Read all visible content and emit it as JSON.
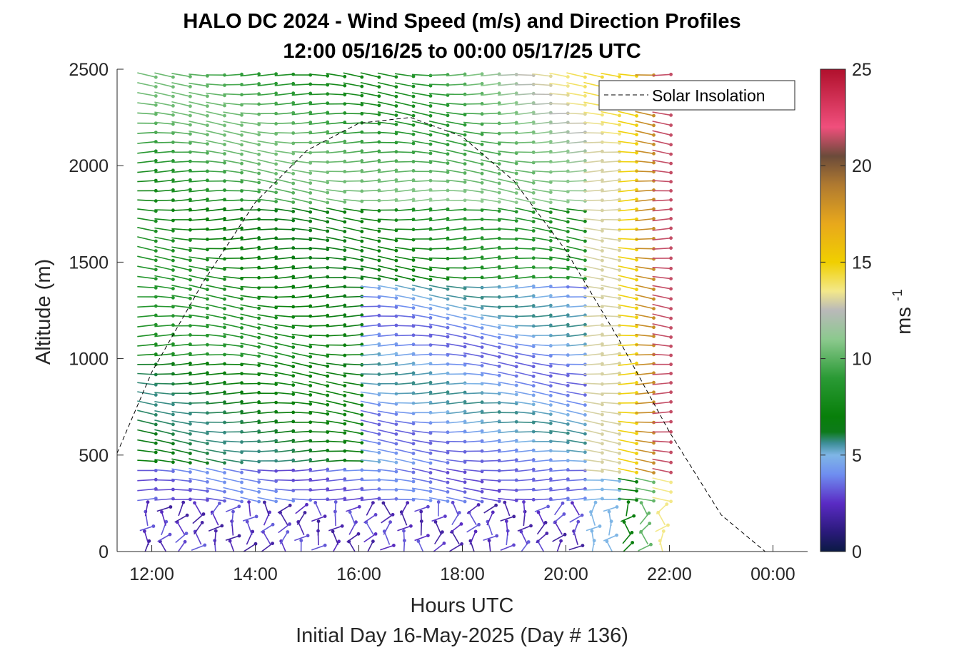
{
  "chart_data": {
    "type": "quiver",
    "title": "HALO DC 2024 - Wind Speed (m/s) and Direction Profiles",
    "subtitle": "12:00 05/16/25 to 00:00 05/17/25  UTC",
    "xlabel": "Hours UTC",
    "ylabel": "Altitude (m)",
    "caption": "Initial Day 16-May-2025 (Day # 136)",
    "x_ticks": [
      "12:00",
      "14:00",
      "16:00",
      "18:00",
      "20:00",
      "22:00",
      "00:00"
    ],
    "x_tick_hours": [
      12,
      14,
      16,
      18,
      20,
      22,
      24
    ],
    "xlim_hours": [
      11.33,
      24.67
    ],
    "y_ticks": [
      "0",
      "500",
      "1000",
      "1500",
      "2000",
      "2500"
    ],
    "y_tick_values": [
      0,
      500,
      1000,
      1500,
      2000,
      2500
    ],
    "ylim": [
      0,
      2500
    ],
    "colorbar": {
      "label": "ms",
      "label_exponent": "-1",
      "ticks": [
        "0",
        "5",
        "10",
        "15",
        "20",
        "25"
      ],
      "tick_values": [
        0,
        5,
        10,
        15,
        20,
        25
      ],
      "range": [
        0,
        25
      ]
    },
    "legend": {
      "entries": [
        "Solar Insolation"
      ],
      "placement": "top-right"
    },
    "solar_insolation": {
      "style": "dashed",
      "color": "#000000",
      "hours": [
        11.33,
        12,
        13,
        14,
        15,
        16,
        17,
        18,
        19,
        20,
        21,
        22,
        23,
        23.85,
        24.67
      ],
      "altitude_equivalent_m": [
        510,
        930,
        1400,
        1810,
        2080,
        2220,
        2250,
        2150,
        1920,
        1560,
        1110,
        620,
        190,
        0,
        0
      ]
    },
    "wind_profiles": {
      "profile_start_hour": 11.9,
      "profile_end_hour": 21.85,
      "profile_count": 31,
      "lowest_level_m": 20,
      "level_spacing_m": 50,
      "level_count": 50,
      "layers": [
        {
          "altitude_m": [
            0,
            250
          ],
          "speed_ms": 2.5,
          "direction": "variable"
        },
        {
          "altitude_m": [
            250,
            450
          ],
          "speed_ms": 3.5,
          "direction": "variable"
        },
        {
          "altitude_m": [
            450,
            1000
          ],
          "speed_ms": 6.5,
          "direction": "from west"
        },
        {
          "altitude_m": [
            1000,
            1800
          ],
          "speed_ms": 7.5,
          "direction": "from west"
        },
        {
          "altitude_m": [
            1800,
            2500
          ],
          "speed_ms": 9,
          "direction": "from west"
        }
      ],
      "evening_speed_ms": {
        "hour_21": 13,
        "hour_21.9": 22
      },
      "speed_range_ms": [
        0,
        25
      ]
    }
  }
}
